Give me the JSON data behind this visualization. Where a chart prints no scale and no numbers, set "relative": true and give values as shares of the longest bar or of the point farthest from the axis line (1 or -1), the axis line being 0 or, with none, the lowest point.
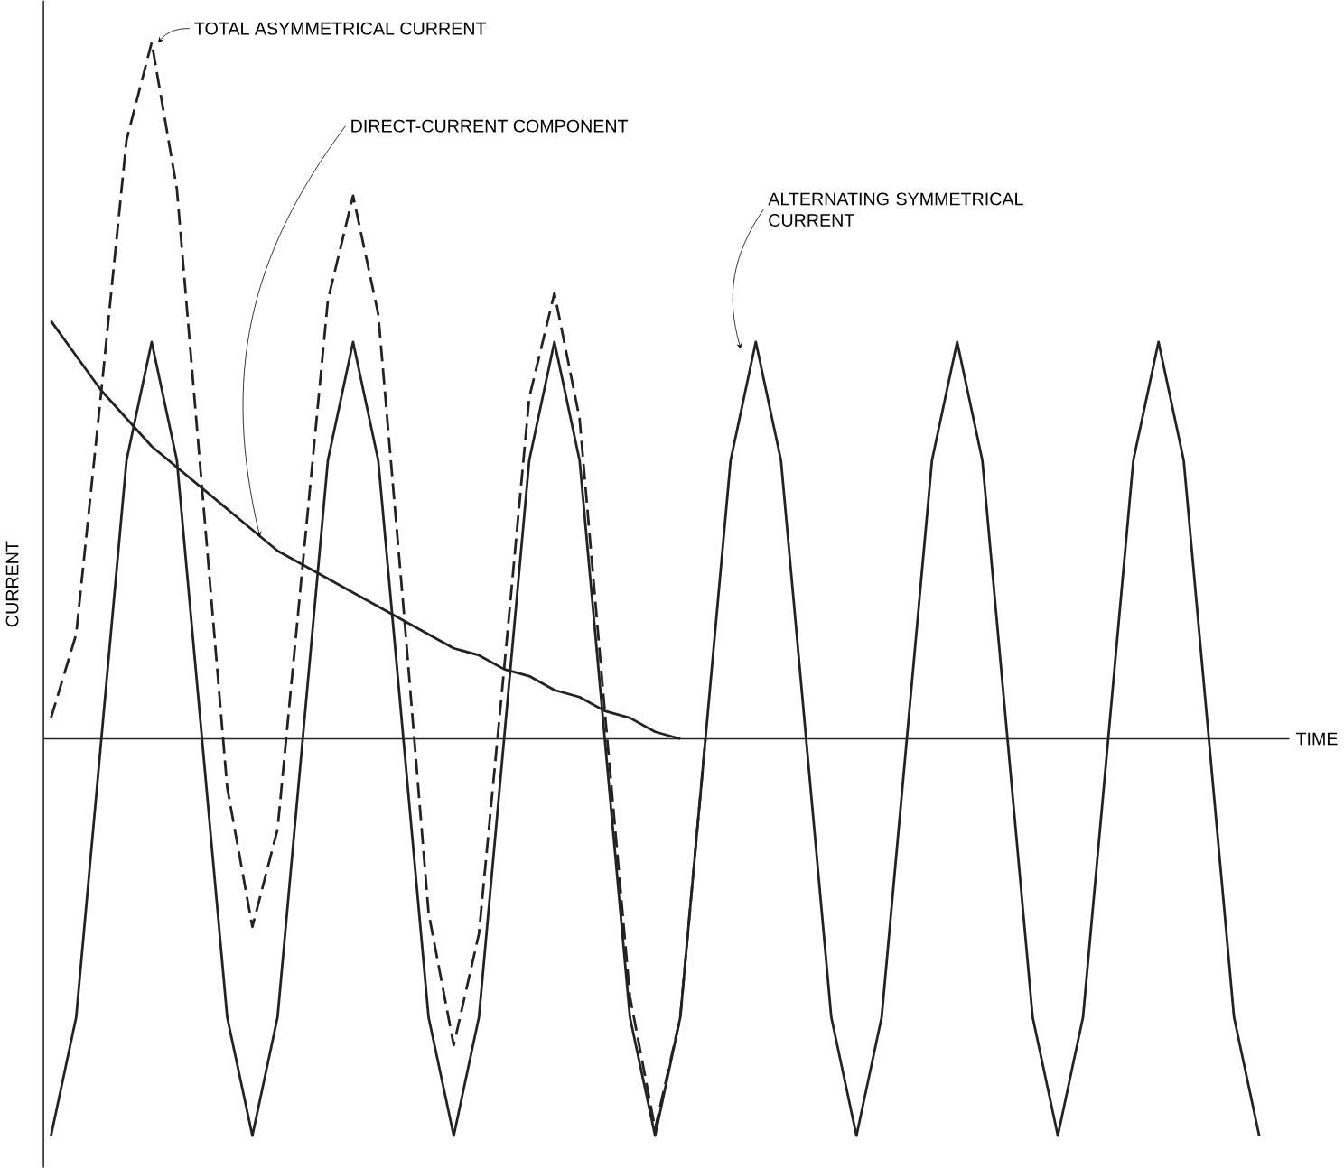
{
  "chart_data": {
    "type": "line",
    "relative": true,
    "xlabel": "TIME",
    "ylabel": "CURRENT",
    "marker": "none",
    "categories": [
      null,
      null,
      null,
      null,
      null,
      null,
      null,
      null,
      null,
      null,
      null,
      null,
      null,
      null,
      null,
      null,
      null,
      null,
      null,
      null,
      null,
      null,
      null,
      null,
      null,
      null,
      null,
      null,
      null,
      null,
      null,
      null,
      null,
      null,
      null,
      null,
      null,
      null,
      null,
      null,
      null,
      null,
      null,
      null,
      null,
      null,
      null,
      null,
      null
    ],
    "series": [
      {
        "color": "#222222",
        "line_style": "dashed",
        "values": [
          0.03,
          0.15,
          0.5,
          0.86,
          1.0,
          0.79,
          0.36,
          -0.07,
          -0.27,
          -0.13,
          0.25,
          0.63,
          0.78,
          0.61,
          0.19,
          -0.25,
          -0.44,
          -0.28,
          0.1,
          0.49,
          0.64,
          0.46,
          0.04,
          -0.37,
          -0.56,
          -0.4,
          0.0,
          null,
          null,
          null,
          null,
          null,
          null,
          null,
          null,
          null,
          null,
          null,
          null,
          null,
          null,
          null,
          null,
          null,
          null,
          null,
          null,
          null,
          null
        ]
      },
      {
        "color": "#222222",
        "line_style": "solid",
        "values": [
          0.6,
          0.55,
          0.5,
          0.46,
          0.42,
          0.39,
          0.36,
          0.33,
          0.3,
          0.27,
          0.25,
          0.23,
          0.21,
          0.19,
          0.17,
          0.15,
          0.13,
          0.12,
          0.1,
          0.09,
          0.07,
          0.06,
          0.04,
          0.03,
          0.01,
          0.0,
          null,
          null,
          null,
          null,
          null,
          null,
          null,
          null,
          null,
          null,
          null,
          null,
          null,
          null,
          null,
          null,
          null,
          null,
          null,
          null,
          null,
          null,
          null
        ]
      },
      {
        "color": "#222222",
        "line_style": "solid",
        "values": [
          -0.57,
          -0.4,
          0.0,
          0.4,
          0.57,
          0.4,
          0.0,
          -0.4,
          -0.57,
          -0.4,
          0.0,
          0.4,
          0.57,
          0.4,
          0.0,
          -0.4,
          -0.57,
          -0.4,
          0.0,
          0.4,
          0.57,
          0.4,
          0.0,
          -0.4,
          -0.57,
          -0.4,
          0.0,
          0.4,
          0.57,
          0.4,
          0.0,
          -0.4,
          -0.57,
          -0.4,
          0.0,
          0.4,
          0.57,
          0.4,
          0.0,
          -0.4,
          -0.57,
          -0.4,
          0.0,
          0.4,
          0.57,
          0.4,
          0.0,
          -0.4,
          -0.57
        ]
      }
    ],
    "annotations": [
      "TOTAL ASYMMETRICAL CURRENT",
      "DIRECT-CURRENT COMPONENT",
      "ALTERNATING SYMMETRICAL CURRENT"
    ]
  }
}
